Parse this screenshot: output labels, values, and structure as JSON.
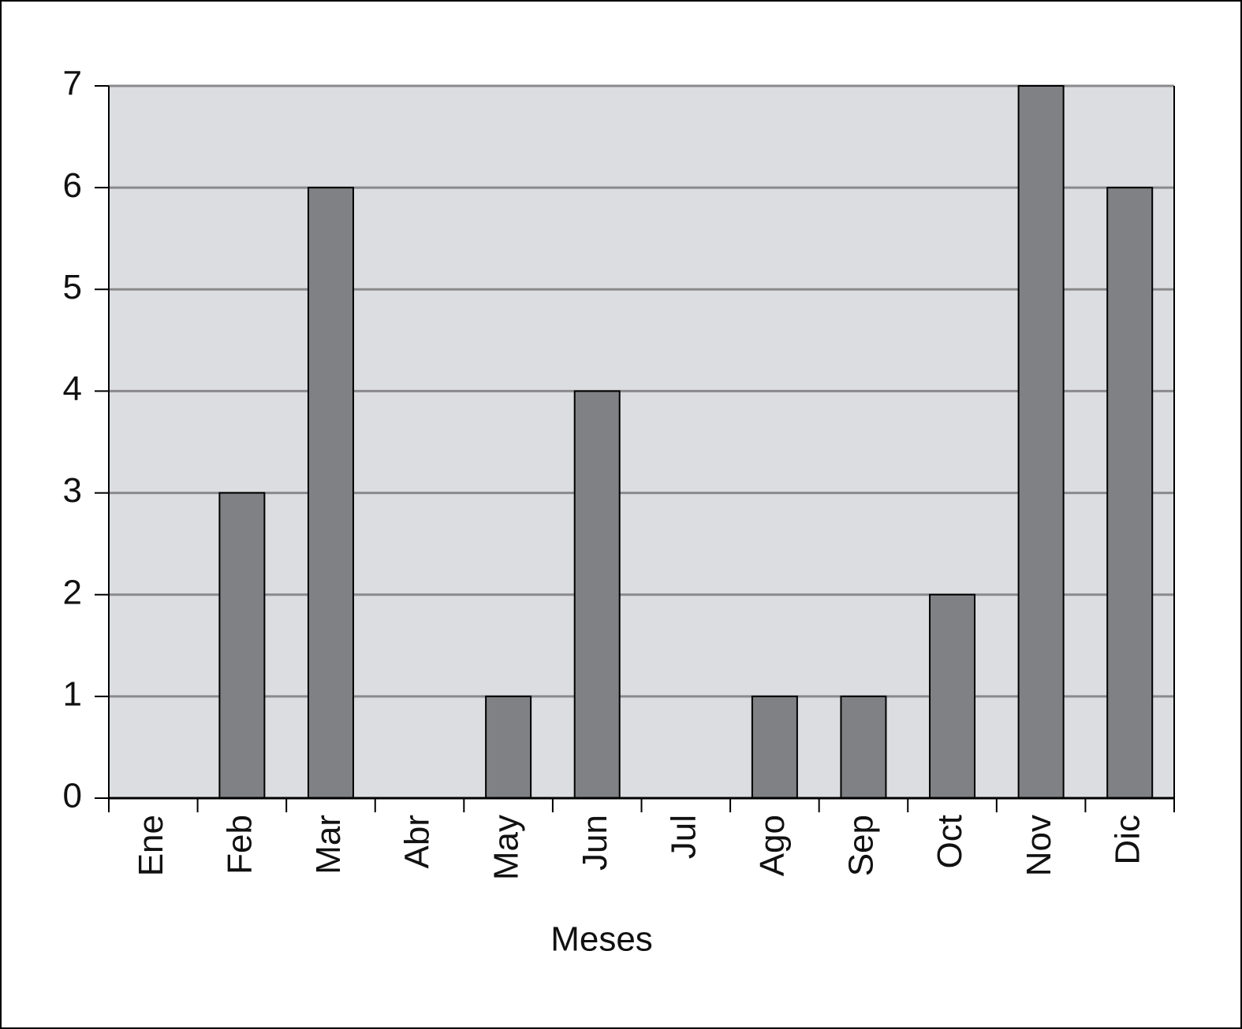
{
  "chart_data": {
    "type": "bar",
    "x_label": "Meses",
    "categories": [
      "Ene",
      "Feb",
      "Mar",
      "Abr",
      "May",
      "Jun",
      "Jul",
      "Ago",
      "Sep",
      "Oct",
      "Nov",
      "Dic"
    ],
    "values": [
      0,
      3,
      6,
      0,
      1,
      4,
      0,
      1,
      1,
      2,
      7,
      6
    ],
    "color": "#808184",
    "background": "#dcdde0",
    "ylim": [
      0,
      7
    ],
    "yticks": [
      0,
      1,
      2,
      3,
      4,
      5,
      6,
      7
    ],
    "grid": true
  }
}
